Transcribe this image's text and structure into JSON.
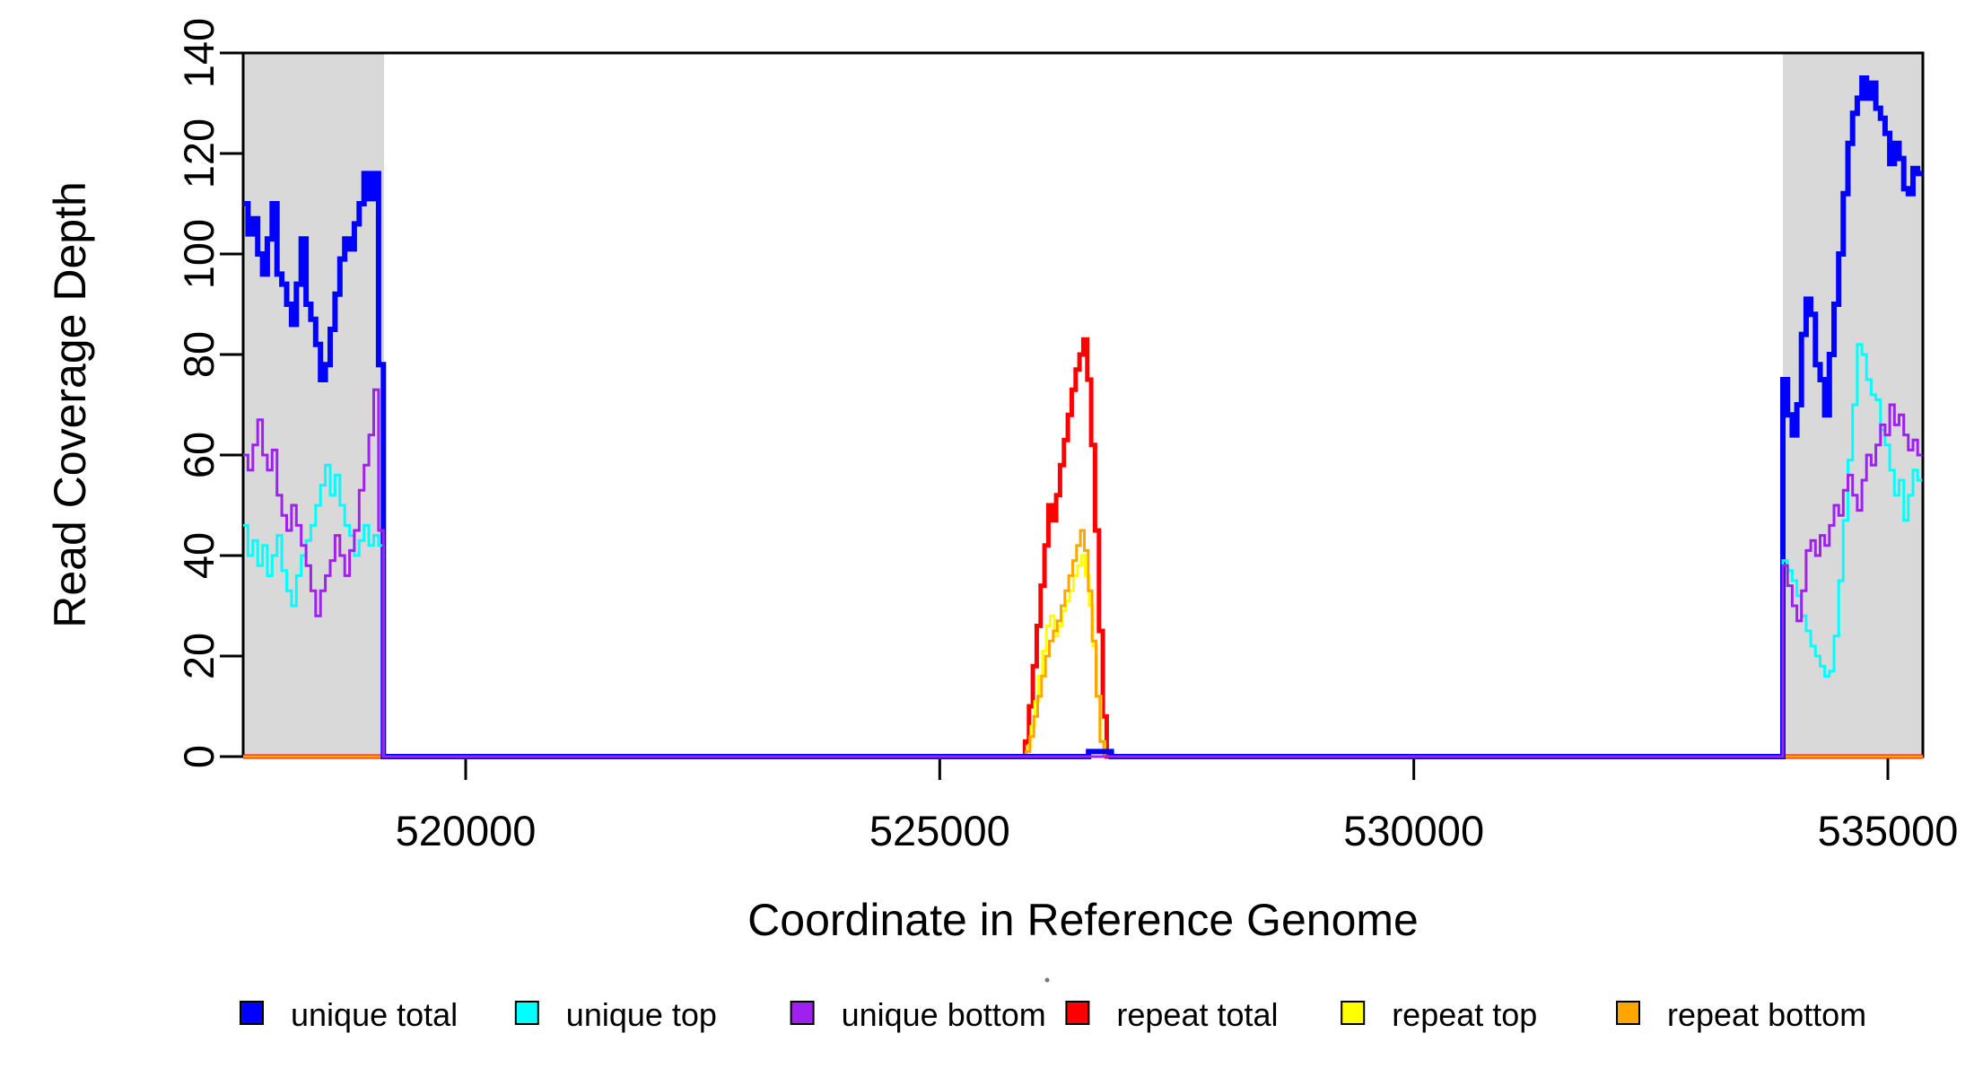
{
  "figure": {
    "background": "#FFFFFF",
    "plot_box_color": "#000000"
  },
  "chart_data": {
    "type": "line",
    "title": "",
    "xlabel": "Coordinate in Reference Genome",
    "ylabel": "Read Coverage Depth",
    "grid": false,
    "x_axis": {
      "range": [
        517653,
        535369
      ],
      "ticks": [
        520000,
        525000,
        530000,
        535000
      ],
      "tick_labels": [
        "520000",
        "525000",
        "530000",
        "535000"
      ]
    },
    "y_axis": {
      "range": [
        0,
        140
      ],
      "ticks": [
        0,
        20,
        40,
        60,
        80,
        100,
        120,
        140
      ],
      "tick_labels": [
        "0",
        "20",
        "40",
        "60",
        "80",
        "100",
        "120",
        "140"
      ]
    },
    "shaded_regions": [
      {
        "name": "left-duplication-block",
        "x_start": 517653,
        "x_end": 519139,
        "color": "#D9D9D9"
      },
      {
        "name": "right-duplication-block",
        "x_start": 533893,
        "x_end": 535369,
        "color": "#D9D9D9"
      }
    ],
    "series": [
      {
        "name": "repeat total",
        "color": "#FF0000",
        "line_width": 5,
        "segments": [
          {
            "x0": 517653,
            "dx": 8247,
            "values": [
              0
            ]
          },
          {
            "x0": 525900,
            "dx": 41,
            "values": [
              3,
              10,
              18,
              26,
              34,
              42,
              50,
              47,
              52,
              58,
              63,
              68,
              73,
              77,
              80,
              83,
              75,
              62,
              45,
              25,
              8
            ]
          },
          {
            "x0": 526761,
            "dx": 8608,
            "values": [
              0
            ]
          }
        ]
      },
      {
        "name": "repeat top",
        "color": "#FFFF00",
        "line_width": 3,
        "segments": [
          {
            "x0": 517653,
            "dx": 8267,
            "values": [
              0
            ]
          },
          {
            "x0": 525920,
            "dx": 41,
            "values": [
              2,
              6,
              11,
              16,
              21,
              26,
              28,
              24,
              26,
              29,
              31,
              33,
              36,
              38,
              40,
              36,
              30,
              22,
              12,
              3
            ]
          },
          {
            "x0": 526740,
            "dx": 8629,
            "values": [
              0
            ]
          }
        ]
      },
      {
        "name": "repeat bottom",
        "color": "#FFA500",
        "line_width": 3,
        "segments": [
          {
            "x0": 517653,
            "dx": 8257,
            "values": [
              0
            ]
          },
          {
            "x0": 525910,
            "dx": 41,
            "values": [
              1,
              4,
              8,
              12,
              16,
              20,
              23,
              25,
              27,
              30,
              33,
              36,
              39,
              42,
              45,
              41,
              33,
              23,
              12,
              3
            ]
          },
          {
            "x0": 526731,
            "dx": 8638,
            "values": [
              0
            ]
          }
        ]
      },
      {
        "name": "unique total",
        "color": "#0000FF",
        "line_width": 6,
        "segments": [
          {
            "x0": 517653,
            "dx": 51,
            "values": [
              110,
              104,
              107,
              100,
              96,
              103,
              110,
              96,
              94,
              90,
              86,
              94,
              103,
              90,
              87,
              82,
              75,
              78,
              85,
              92,
              99,
              103,
              101,
              106,
              110,
              116,
              111,
              116,
              78
            ]
          },
          {
            "x0": 519132,
            "dx": 7438,
            "values": [
              0
            ]
          },
          {
            "x0": 526570,
            "dx": 240,
            "values": [
              1
            ]
          },
          {
            "x0": 526810,
            "dx": 7083,
            "values": [
              0
            ]
          },
          {
            "x0": 533893,
            "dx": 49,
            "values": [
              75,
              68,
              64,
              70,
              84,
              91,
              88,
              78,
              75,
              68,
              80,
              90,
              100,
              112,
              122,
              128,
              131,
              135,
              131,
              134,
              129,
              127,
              124,
              118,
              122,
              119,
              113,
              112,
              117,
              116
            ]
          }
        ]
      },
      {
        "name": "unique top",
        "color": "#00FFFF",
        "line_width": 3,
        "segments": [
          {
            "x0": 517653,
            "dx": 51,
            "values": [
              46,
              40,
              43,
              38,
              42,
              36,
              40,
              44,
              37,
              33,
              30,
              36,
              40,
              43,
              46,
              50,
              54,
              58,
              52,
              56,
              50,
              46,
              44,
              40,
              43,
              46,
              42,
              44,
              42
            ]
          },
          {
            "x0": 519132,
            "dx": 14761,
            "values": [
              0
            ]
          },
          {
            "x0": 533893,
            "dx": 49,
            "values": [
              39,
              37,
              35,
              32,
              28,
              25,
              22,
              20,
              18,
              16,
              17,
              24,
              35,
              47,
              59,
              70,
              82,
              80,
              75,
              72,
              71,
              65,
              62,
              57,
              52,
              55,
              47,
              52,
              57,
              55
            ]
          }
        ]
      },
      {
        "name": "unique bottom",
        "color": "#A020F0",
        "line_width": 3,
        "segments": [
          {
            "x0": 517653,
            "dx": 51,
            "values": [
              60,
              57,
              62,
              67,
              60,
              57,
              61,
              52,
              48,
              45,
              50,
              46,
              42,
              38,
              33,
              28,
              33,
              36,
              39,
              44,
              40,
              36,
              41,
              45,
              53,
              58,
              64,
              73,
              45
            ]
          },
          {
            "x0": 519132,
            "dx": 14761,
            "values": [
              0
            ]
          },
          {
            "x0": 533893,
            "dx": 49,
            "values": [
              38,
              34,
              30,
              27,
              33,
              41,
              43,
              40,
              44,
              42,
              46,
              50,
              48,
              53,
              56,
              52,
              49,
              55,
              60,
              58,
              62,
              66,
              64,
              70,
              66,
              68,
              64,
              61,
              63,
              60
            ]
          }
        ]
      }
    ],
    "legend": {
      "position": "bottom",
      "entries": [
        {
          "label": "unique total",
          "color": "#0000FF"
        },
        {
          "label": "unique top",
          "color": "#00FFFF"
        },
        {
          "label": "unique bottom",
          "color": "#A020F0"
        },
        {
          "label": "repeat total",
          "color": "#FF0000"
        },
        {
          "label": "repeat top",
          "color": "#FFFF00"
        },
        {
          "label": "repeat bottom",
          "color": "#FFA500"
        }
      ]
    }
  }
}
